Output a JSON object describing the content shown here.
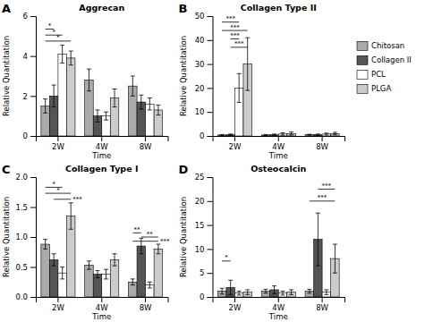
{
  "chart_data": [
    {
      "type": "bar",
      "panel_label": "A",
      "title": "Aggrecan",
      "xlabel": "Time",
      "ylabel": "Relative Quantitation",
      "categories": [
        "2W",
        "4W",
        "8W"
      ],
      "series": [
        {
          "name": "Chitosan",
          "color": "#aaaaaa",
          "values": [
            1.5,
            2.8,
            2.5
          ],
          "errors": [
            0.35,
            0.55,
            0.5
          ]
        },
        {
          "name": "Collagen II",
          "color": "#555555",
          "values": [
            2.0,
            1.0,
            1.7
          ],
          "errors": [
            0.55,
            0.3,
            0.35
          ]
        },
        {
          "name": "PCL",
          "color": "#ffffff",
          "values": [
            4.1,
            1.0,
            1.6
          ],
          "errors": [
            0.45,
            0.2,
            0.3
          ]
        },
        {
          "name": "PLGA",
          "color": "#cccccc",
          "values": [
            3.9,
            1.9,
            1.3
          ],
          "errors": [
            0.35,
            0.45,
            0.25
          ]
        }
      ],
      "ylim": [
        0,
        6
      ],
      "yticks": [
        0,
        2,
        4,
        6
      ],
      "annotations": [
        {
          "text": "*",
          "y": 5.35,
          "category": "2W",
          "from": "Chitosan",
          "to": "Collagen II"
        },
        {
          "text": "*",
          "y": 5.05,
          "category": "2W",
          "from": "Chitosan",
          "to": "PCL"
        },
        {
          "text": "*",
          "y": 4.75,
          "category": "2W",
          "from": "Chitosan",
          "to": "PLGA"
        }
      ]
    },
    {
      "type": "bar",
      "panel_label": "B",
      "title": "Collagen Type II",
      "xlabel": "Time",
      "ylabel": "Relative Quantitation",
      "categories": [
        "2W",
        "4W",
        "8W"
      ],
      "series": [
        {
          "name": "Chitosan",
          "color": "#aaaaaa",
          "values": [
            0.4,
            0.4,
            0.5
          ],
          "errors": [
            0.2,
            0.2,
            0.2
          ]
        },
        {
          "name": "Collagen II",
          "color": "#555555",
          "values": [
            0.5,
            0.5,
            0.5
          ],
          "errors": [
            0.3,
            0.3,
            0.3
          ]
        },
        {
          "name": "PCL",
          "color": "#ffffff",
          "values": [
            20.0,
            0.8,
            0.8
          ],
          "errors": [
            6.0,
            0.5,
            0.4
          ]
        },
        {
          "name": "PLGA",
          "color": "#cccccc",
          "values": [
            30.0,
            1.0,
            1.0
          ],
          "errors": [
            11.0,
            0.6,
            0.5
          ]
        }
      ],
      "ylim": [
        0,
        50
      ],
      "yticks": [
        0,
        10,
        20,
        30,
        40,
        50
      ],
      "legend": "right",
      "annotations": [
        {
          "text": "***",
          "y": 47.5,
          "category": "2W",
          "from": "Chitosan",
          "to": "PCL"
        },
        {
          "text": "***",
          "y": 44.0,
          "category": "2W",
          "from": "Chitosan",
          "to": "PLGA"
        },
        {
          "text": "***",
          "y": 40.5,
          "category": "2W",
          "from": "Collagen II",
          "to": "PCL"
        },
        {
          "text": "***",
          "y": 37.0,
          "category": "2W",
          "from": "Collagen II",
          "to": "PLGA"
        }
      ]
    },
    {
      "type": "bar",
      "panel_label": "C",
      "title": "Collagen Type I",
      "xlabel": "Time",
      "ylabel": "Relative Quantitation",
      "categories": [
        "2W",
        "4W",
        "8W"
      ],
      "series": [
        {
          "name": "Chitosan",
          "color": "#aaaaaa",
          "values": [
            0.88,
            0.53,
            0.25
          ],
          "errors": [
            0.08,
            0.07,
            0.05
          ]
        },
        {
          "name": "Collagen II",
          "color": "#555555",
          "values": [
            0.62,
            0.38,
            0.85
          ],
          "errors": [
            0.1,
            0.06,
            0.13
          ]
        },
        {
          "name": "PCL",
          "color": "#ffffff",
          "values": [
            0.4,
            0.38,
            0.2
          ],
          "errors": [
            0.1,
            0.08,
            0.05
          ]
        },
        {
          "name": "PLGA",
          "color": "#cccccc",
          "values": [
            1.35,
            0.62,
            0.8
          ],
          "errors": [
            0.22,
            0.1,
            0.08
          ]
        }
      ],
      "ylim": [
        0.0,
        2.0
      ],
      "yticks": [
        {
          "value": 0.0,
          "label": "0.0"
        },
        0.5,
        {
          "value": 1.0,
          "label": "1.0"
        },
        1.5,
        {
          "value": 2.0,
          "label": "2.0"
        }
      ],
      "annotations": [
        {
          "text": "*",
          "y": 1.83,
          "category": "2W",
          "from": "Chitosan",
          "to": "PCL"
        },
        {
          "text": "*",
          "y": 1.73,
          "category": "2W",
          "from": "Chitosan",
          "to": "PLGA"
        },
        {
          "text": "***",
          "y": 1.63,
          "category": "2W",
          "from": "Collagen II",
          "to": "PLGA"
        },
        {
          "text": "**",
          "y": 1.07,
          "category": "8W",
          "from": "Chitosan",
          "to": "Collagen II"
        },
        {
          "text": "**",
          "y": 1.0,
          "category": "8W",
          "from": "Collagen II",
          "to": "PLGA"
        },
        {
          "text": "***",
          "y": 0.93,
          "category": "8W",
          "from": "Chitosan",
          "to": "PLGA"
        }
      ]
    },
    {
      "type": "bar",
      "panel_label": "D",
      "title": "Osteocalcin",
      "xlabel": "Time",
      "ylabel": "Relative Quantitation",
      "categories": [
        "2W",
        "4W",
        "8W"
      ],
      "series": [
        {
          "name": "Chitosan",
          "color": "#aaaaaa",
          "values": [
            1.2,
            1.2,
            1.2
          ],
          "errors": [
            0.6,
            0.4,
            0.4
          ]
        },
        {
          "name": "Collagen II",
          "color": "#555555",
          "values": [
            2.0,
            1.5,
            12.0
          ],
          "errors": [
            1.5,
            0.8,
            5.5
          ]
        },
        {
          "name": "PCL",
          "color": "#ffffff",
          "values": [
            0.8,
            0.8,
            1.0
          ],
          "errors": [
            0.4,
            0.4,
            0.5
          ]
        },
        {
          "name": "PLGA",
          "color": "#cccccc",
          "values": [
            1.0,
            1.0,
            8.0
          ],
          "errors": [
            0.5,
            0.5,
            3.0
          ]
        }
      ],
      "ylim": [
        0,
        25
      ],
      "yticks": [
        0,
        5,
        10,
        15,
        20,
        25
      ],
      "annotations": [
        {
          "text": "*",
          "y": 7.5,
          "category": "2W",
          "from": "Chitosan",
          "to": "Collagen II"
        },
        {
          "text": "***",
          "y": 22.5,
          "category": "8W",
          "from": "Collagen II",
          "to": "PLGA"
        },
        {
          "text": "***",
          "y": 20.0,
          "category": "8W",
          "from": "Chitosan",
          "to": "PLGA"
        }
      ]
    }
  ]
}
